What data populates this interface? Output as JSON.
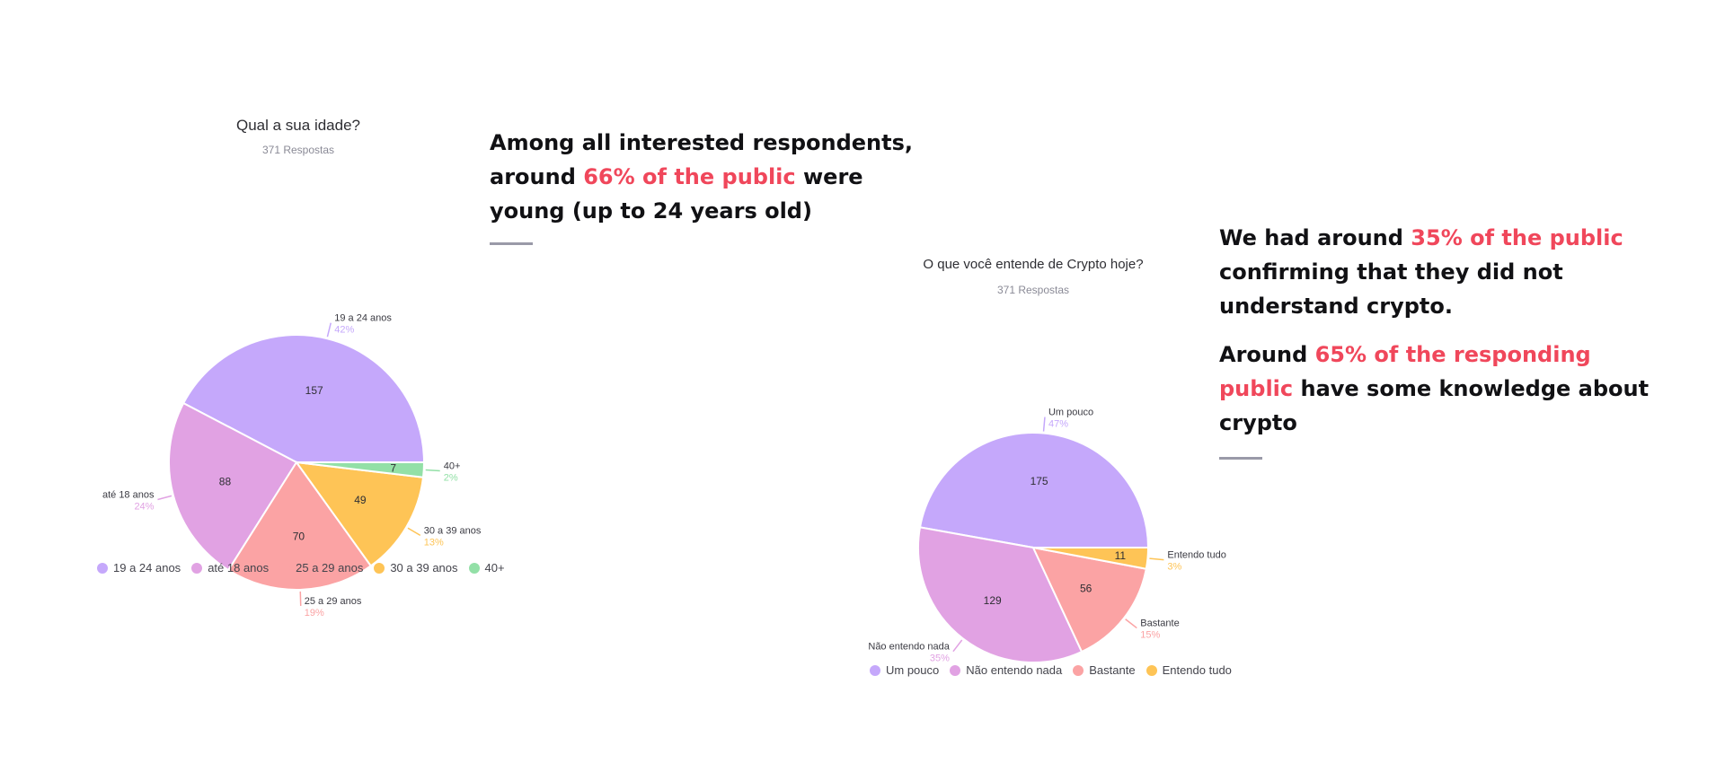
{
  "chart_data": [
    {
      "type": "pie",
      "title": "Qual a sua idade?",
      "subtitle": "371 Respostas",
      "labels": [
        "19 a 24 anos",
        "até 18 anos",
        "25 a 29 anos",
        "30 a 39 anos",
        "40+"
      ],
      "values": [
        157,
        88,
        70,
        49,
        7
      ],
      "percent_labels": [
        "42%",
        "24%",
        "19%",
        "13%",
        "2%"
      ],
      "colors": [
        "#c5a8fb",
        "#e1a2e3",
        "#fba3a4",
        "#fec456",
        "#93e0a7"
      ],
      "legend": "bottom"
    },
    {
      "type": "pie",
      "title": "O que você entende de Crypto hoje?",
      "subtitle": "371 Respostas",
      "labels": [
        "Um pouco",
        "Não entendo nada",
        "Bastante",
        "Entendo tudo"
      ],
      "values": [
        175,
        129,
        56,
        11
      ],
      "percent_labels": [
        "47%",
        "35%",
        "15%",
        "3%"
      ],
      "colors": [
        "#c5a8fb",
        "#e1a2e3",
        "#fba3a4",
        "#fec456"
      ],
      "legend": "bottom"
    }
  ],
  "notes": {
    "left": {
      "l1": "Among all interested respondents,",
      "l2a": "around ",
      "l2hl": "66% of the public",
      "l2b": " were",
      "l3": "young (up to 24 years old)"
    },
    "right": {
      "p1a": "We had around ",
      "p1hl": "35% of the public",
      "p1b": "confirming that they did not",
      "p1c": "understand crypto.",
      "p2a": "Around ",
      "p2hl1": "65% of the responding",
      "p2hl2": "public",
      "p2b": " have some knowledge about",
      "p2c": "crypto"
    }
  },
  "colors": {
    "highlight": "#f0475b",
    "text": "#111114",
    "rule": "#9a9aa8"
  }
}
